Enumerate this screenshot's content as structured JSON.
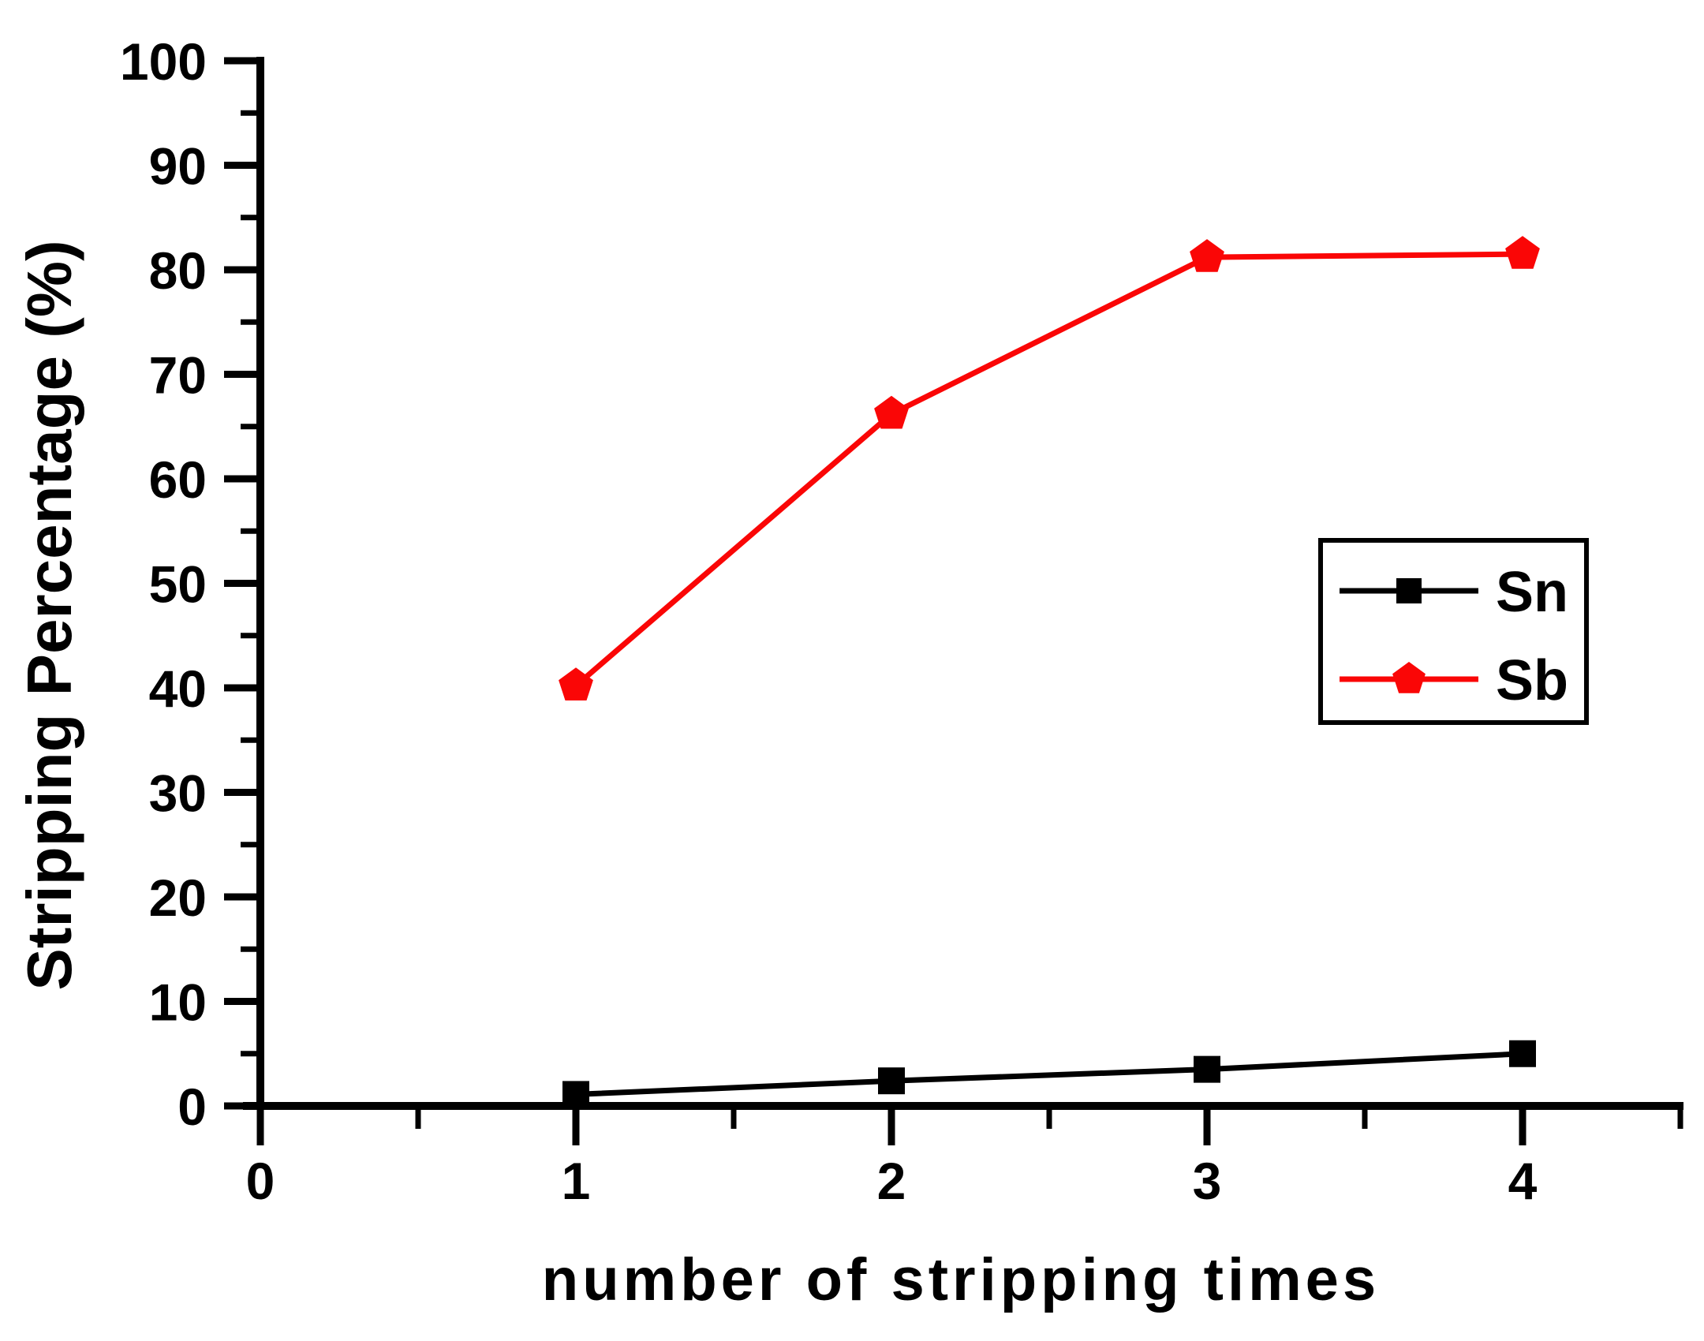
{
  "chart_data": {
    "type": "line",
    "title": "",
    "xlabel": "number of stripping times",
    "ylabel": "Stripping Percentage (%)",
    "x": [
      1,
      2,
      3,
      4
    ],
    "series": [
      {
        "name": "Sn",
        "color": "#000000",
        "marker": "square",
        "values": [
          1.1,
          2.4,
          3.5,
          5.0
        ]
      },
      {
        "name": "Sb",
        "color": "#fa0606",
        "marker": "pentagon",
        "values": [
          40.2,
          66.2,
          81.2,
          81.5
        ]
      }
    ],
    "xlim": [
      0,
      4.5
    ],
    "ylim": [
      0,
      100
    ],
    "x_ticks": {
      "major": [
        0,
        1,
        2,
        3,
        4
      ],
      "minor": [
        0.5,
        1.5,
        2.5,
        3.5,
        4.5
      ]
    },
    "y_ticks": {
      "major": [
        0,
        10,
        20,
        30,
        40,
        50,
        60,
        70,
        80,
        90,
        100
      ],
      "minor": [
        5,
        15,
        25,
        35,
        45,
        55,
        65,
        75,
        85,
        95
      ]
    },
    "grid": false,
    "legend": {
      "position": "right-middle",
      "entries": [
        "Sn",
        "Sb"
      ]
    },
    "axis_color": "#000000",
    "background": "#ffffff"
  }
}
